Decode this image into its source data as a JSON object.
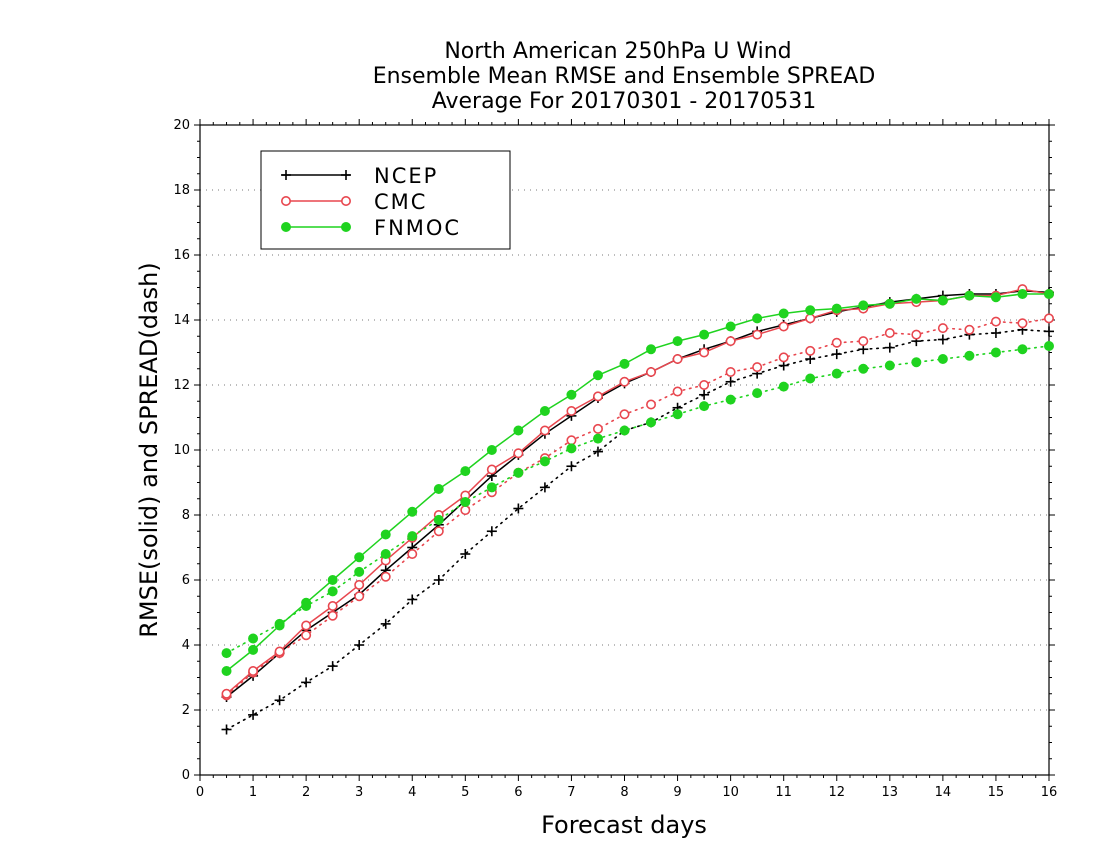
{
  "chart_data": {
    "type": "line",
    "title": [
      "North American 250hPa U Wind",
      "Ensemble Mean RMSE and Ensemble SPREAD",
      "Average For 20170301 - 20170531"
    ],
    "xlabel": "Forecast days",
    "ylabel": "RMSE(solid) and SPREAD(dash)",
    "xlim": [
      0,
      16
    ],
    "ylim": [
      0,
      20
    ],
    "xticks": [
      "0",
      "1",
      "2",
      "3",
      "4",
      "5",
      "6",
      "7",
      "8",
      "9",
      "10",
      "11",
      "12",
      "13",
      "14",
      "15",
      "16"
    ],
    "yticks": [
      "0",
      "2",
      "4",
      "6",
      "8",
      "10",
      "12",
      "14",
      "16",
      "18",
      "20"
    ],
    "grid": "horizontal dotted",
    "legend_position": "top-left",
    "x": [
      0.5,
      1,
      1.5,
      2,
      2.5,
      3,
      3.5,
      4,
      4.5,
      5,
      5.5,
      6,
      6.5,
      7,
      7.5,
      8,
      8.5,
      9,
      9.5,
      10,
      10.5,
      11,
      11.5,
      12,
      12.5,
      13,
      13.5,
      14,
      14.5,
      15,
      15.5,
      16
    ],
    "series": [
      {
        "name": "NCEP",
        "color": "#000000",
        "marker": "plus",
        "rmse": [
          2.4,
          3.05,
          3.75,
          4.45,
          5.0,
          5.55,
          6.3,
          7.0,
          7.7,
          8.45,
          9.2,
          9.85,
          10.5,
          11.05,
          11.6,
          12.05,
          12.4,
          12.8,
          13.1,
          13.35,
          13.65,
          13.85,
          14.05,
          14.25,
          14.4,
          14.55,
          14.65,
          14.75,
          14.8,
          14.8,
          14.9,
          14.85
        ],
        "spread": [
          1.4,
          1.85,
          2.3,
          2.85,
          3.35,
          4.0,
          4.65,
          5.4,
          6.0,
          6.8,
          7.5,
          8.2,
          8.85,
          9.5,
          9.95,
          10.6,
          10.85,
          11.3,
          11.7,
          12.1,
          12.35,
          12.6,
          12.8,
          12.95,
          13.1,
          13.15,
          13.35,
          13.4,
          13.55,
          13.6,
          13.7,
          13.65
        ]
      },
      {
        "name": "CMC",
        "color": "#e8474f",
        "marker": "open-circle",
        "rmse": [
          2.5,
          3.2,
          3.8,
          4.6,
          5.2,
          5.85,
          6.6,
          7.3,
          8.0,
          8.6,
          9.4,
          9.9,
          10.6,
          11.2,
          11.65,
          12.1,
          12.4,
          12.8,
          13.0,
          13.35,
          13.55,
          13.8,
          14.05,
          14.3,
          14.35,
          14.5,
          14.55,
          14.6,
          14.75,
          14.75,
          14.95,
          14.8
        ],
        "spread": [
          2.45,
          3.15,
          3.75,
          4.3,
          4.9,
          5.5,
          6.1,
          6.8,
          7.5,
          8.15,
          8.7,
          9.3,
          9.75,
          10.3,
          10.65,
          11.1,
          11.4,
          11.8,
          12.0,
          12.4,
          12.55,
          12.85,
          13.05,
          13.3,
          13.35,
          13.6,
          13.55,
          13.75,
          13.7,
          13.95,
          13.9,
          14.05
        ]
      },
      {
        "name": "FNMOC",
        "color": "#1fd31f",
        "marker": "filled-circle",
        "rmse": [
          3.2,
          3.85,
          4.6,
          5.3,
          6.0,
          6.7,
          7.4,
          8.1,
          8.8,
          9.35,
          10.0,
          10.6,
          11.2,
          11.7,
          12.3,
          12.65,
          13.1,
          13.35,
          13.55,
          13.8,
          14.05,
          14.2,
          14.3,
          14.35,
          14.45,
          14.5,
          14.65,
          14.6,
          14.75,
          14.7,
          14.8,
          14.8
        ],
        "spread": [
          3.75,
          4.2,
          4.65,
          5.2,
          5.65,
          6.25,
          6.8,
          7.35,
          7.85,
          8.4,
          8.85,
          9.3,
          9.65,
          10.05,
          10.35,
          10.6,
          10.85,
          11.1,
          11.35,
          11.55,
          11.75,
          11.95,
          12.2,
          12.35,
          12.5,
          12.6,
          12.7,
          12.8,
          12.9,
          13.0,
          13.1,
          13.2
        ]
      }
    ]
  }
}
